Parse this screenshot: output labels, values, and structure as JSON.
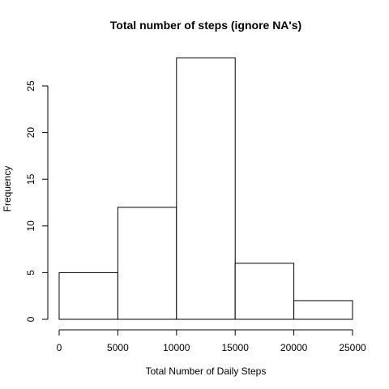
{
  "chart_data": {
    "type": "histogram",
    "title": "Total number of steps (ignore NA's)",
    "xlabel": "Total Number of Daily Steps",
    "ylabel": "Frequency",
    "bins": [
      {
        "from": 0,
        "to": 5000,
        "count": 5
      },
      {
        "from": 5000,
        "to": 10000,
        "count": 12
      },
      {
        "from": 10000,
        "to": 15000,
        "count": 28
      },
      {
        "from": 15000,
        "to": 20000,
        "count": 6
      },
      {
        "from": 20000,
        "to": 25000,
        "count": 2
      }
    ],
    "x_ticks": [
      0,
      5000,
      10000,
      15000,
      20000,
      25000
    ],
    "y_ticks": [
      0,
      5,
      10,
      15,
      20,
      25
    ],
    "xlim": [
      0,
      25000
    ],
    "ylim": [
      0,
      28
    ],
    "bar_fill": "#ffffff",
    "bar_stroke": "#000000",
    "grid": false,
    "legend": "none"
  }
}
